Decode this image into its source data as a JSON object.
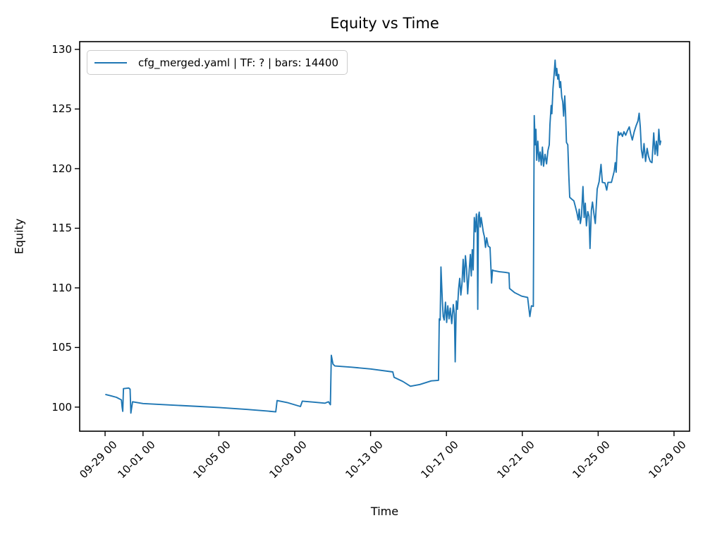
{
  "chart_data": {
    "type": "line",
    "title": "Equity vs Time",
    "xlabel": "Time",
    "ylabel": "Equity",
    "line_color": "#1f77b4",
    "legend_position": "upper left",
    "grid": false,
    "xlim_days": [
      -1.34,
      30.82
    ],
    "ylim": [
      97.98,
      130.65
    ],
    "x_ticks": [
      {
        "day": 0,
        "label": "09-29 00"
      },
      {
        "day": 2,
        "label": "10-01 00"
      },
      {
        "day": 6,
        "label": "10-05 00"
      },
      {
        "day": 10,
        "label": "10-09 00"
      },
      {
        "day": 14,
        "label": "10-13 00"
      },
      {
        "day": 18,
        "label": "10-17 00"
      },
      {
        "day": 22,
        "label": "10-21 00"
      },
      {
        "day": 26,
        "label": "10-25 00"
      },
      {
        "day": 30,
        "label": "10-29 00"
      }
    ],
    "y_ticks": [
      100,
      105,
      110,
      115,
      120,
      125,
      130
    ],
    "series": [
      {
        "name": "cfg_merged.yaml | TF: ? | bars: 14400",
        "points": [
          [
            0.04,
            101.05
          ],
          [
            0.3,
            100.95
          ],
          [
            0.6,
            100.82
          ],
          [
            0.86,
            100.6
          ],
          [
            0.9,
            100.0
          ],
          [
            0.93,
            99.65
          ],
          [
            0.97,
            101.55
          ],
          [
            1.25,
            101.6
          ],
          [
            1.32,
            101.5
          ],
          [
            1.36,
            99.5
          ],
          [
            1.45,
            100.45
          ],
          [
            2.0,
            100.3
          ],
          [
            3.4,
            100.18
          ],
          [
            5.0,
            100.05
          ],
          [
            6.0,
            99.97
          ],
          [
            7.5,
            99.8
          ],
          [
            8.5,
            99.68
          ],
          [
            9.0,
            99.6
          ],
          [
            9.07,
            100.55
          ],
          [
            9.6,
            100.38
          ],
          [
            10.3,
            100.05
          ],
          [
            10.4,
            100.5
          ],
          [
            11.0,
            100.42
          ],
          [
            11.6,
            100.33
          ],
          [
            11.78,
            100.45
          ],
          [
            11.88,
            100.2
          ],
          [
            11.93,
            104.35
          ],
          [
            12.02,
            103.6
          ],
          [
            12.12,
            103.45
          ],
          [
            13.0,
            103.35
          ],
          [
            14.0,
            103.2
          ],
          [
            15.17,
            102.95
          ],
          [
            15.24,
            102.5
          ],
          [
            15.7,
            102.15
          ],
          [
            16.1,
            101.75
          ],
          [
            16.6,
            101.9
          ],
          [
            17.2,
            102.2
          ],
          [
            17.58,
            102.25
          ],
          [
            17.62,
            107.4
          ],
          [
            17.67,
            107.3
          ],
          [
            17.71,
            111.75
          ],
          [
            17.78,
            109.0
          ],
          [
            17.83,
            107.6
          ],
          [
            17.88,
            107.3
          ],
          [
            17.95,
            108.8
          ],
          [
            18.01,
            107.1
          ],
          [
            18.07,
            108.5
          ],
          [
            18.14,
            107.4
          ],
          [
            18.2,
            108.3
          ],
          [
            18.28,
            107.0
          ],
          [
            18.36,
            108.6
          ],
          [
            18.42,
            107.8
          ],
          [
            18.46,
            103.8
          ],
          [
            18.52,
            108.9
          ],
          [
            18.58,
            108.2
          ],
          [
            18.64,
            109.9
          ],
          [
            18.7,
            110.8
          ],
          [
            18.76,
            109.4
          ],
          [
            18.82,
            110.3
          ],
          [
            18.88,
            112.4
          ],
          [
            18.94,
            110.5
          ],
          [
            19.0,
            112.7
          ],
          [
            19.06,
            111.6
          ],
          [
            19.12,
            109.5
          ],
          [
            19.2,
            111.5
          ],
          [
            19.26,
            112.8
          ],
          [
            19.31,
            111.0
          ],
          [
            19.36,
            113.2
          ],
          [
            19.41,
            111.5
          ],
          [
            19.47,
            115.9
          ],
          [
            19.53,
            114.7
          ],
          [
            19.58,
            116.2
          ],
          [
            19.62,
            114.9
          ],
          [
            19.65,
            108.2
          ],
          [
            19.69,
            116.0
          ],
          [
            19.73,
            116.35
          ],
          [
            19.78,
            115.1
          ],
          [
            19.83,
            115.9
          ],
          [
            19.88,
            115.4
          ],
          [
            19.94,
            114.7
          ],
          [
            20.0,
            114.3
          ],
          [
            20.06,
            113.4
          ],
          [
            20.12,
            114.2
          ],
          [
            20.2,
            113.5
          ],
          [
            20.3,
            113.4
          ],
          [
            20.38,
            110.4
          ],
          [
            20.43,
            111.5
          ],
          [
            20.48,
            111.45
          ],
          [
            20.8,
            111.35
          ],
          [
            21.1,
            111.3
          ],
          [
            21.3,
            111.25
          ],
          [
            21.33,
            109.95
          ],
          [
            21.6,
            109.6
          ],
          [
            21.97,
            109.3
          ],
          [
            22.28,
            109.2
          ],
          [
            22.4,
            107.6
          ],
          [
            22.48,
            108.5
          ],
          [
            22.58,
            108.45
          ],
          [
            22.63,
            124.45
          ],
          [
            22.68,
            122.0
          ],
          [
            22.72,
            123.3
          ],
          [
            22.76,
            120.7
          ],
          [
            22.82,
            122.3
          ],
          [
            22.88,
            120.6
          ],
          [
            22.94,
            121.4
          ],
          [
            23.0,
            120.3
          ],
          [
            23.06,
            121.8
          ],
          [
            23.12,
            120.2
          ],
          [
            23.2,
            121.2
          ],
          [
            23.28,
            120.4
          ],
          [
            23.35,
            121.5
          ],
          [
            23.42,
            122.0
          ],
          [
            23.46,
            123.7
          ],
          [
            23.52,
            125.3
          ],
          [
            23.56,
            124.6
          ],
          [
            23.62,
            126.7
          ],
          [
            23.68,
            128.0
          ],
          [
            23.73,
            129.1
          ],
          [
            23.78,
            127.8
          ],
          [
            23.82,
            128.4
          ],
          [
            23.87,
            127.5
          ],
          [
            23.92,
            127.9
          ],
          [
            23.97,
            126.8
          ],
          [
            24.02,
            127.3
          ],
          [
            24.08,
            126.0
          ],
          [
            24.13,
            125.6
          ],
          [
            24.18,
            124.4
          ],
          [
            24.24,
            126.1
          ],
          [
            24.28,
            124.7
          ],
          [
            24.33,
            122.2
          ],
          [
            24.4,
            122.0
          ],
          [
            24.45,
            119.5
          ],
          [
            24.5,
            117.6
          ],
          [
            24.6,
            117.45
          ],
          [
            24.72,
            117.3
          ],
          [
            24.8,
            116.8
          ],
          [
            24.88,
            116.3
          ],
          [
            24.95,
            115.7
          ],
          [
            25.0,
            116.6
          ],
          [
            25.06,
            115.4
          ],
          [
            25.12,
            116.0
          ],
          [
            25.2,
            118.5
          ],
          [
            25.26,
            115.9
          ],
          [
            25.32,
            117.1
          ],
          [
            25.38,
            115.2
          ],
          [
            25.45,
            116.4
          ],
          [
            25.52,
            116.0
          ],
          [
            25.57,
            113.3
          ],
          [
            25.64,
            116.5
          ],
          [
            25.7,
            117.2
          ],
          [
            25.78,
            116.2
          ],
          [
            25.85,
            115.4
          ],
          [
            25.95,
            118.3
          ],
          [
            26.05,
            118.9
          ],
          [
            26.15,
            120.35
          ],
          [
            26.22,
            118.85
          ],
          [
            26.36,
            118.8
          ],
          [
            26.45,
            118.2
          ],
          [
            26.52,
            118.85
          ],
          [
            26.7,
            118.85
          ],
          [
            26.85,
            119.8
          ],
          [
            26.9,
            120.5
          ],
          [
            26.95,
            119.7
          ],
          [
            27.0,
            121.8
          ],
          [
            27.06,
            123.1
          ],
          [
            27.12,
            122.8
          ],
          [
            27.2,
            123.0
          ],
          [
            27.28,
            122.7
          ],
          [
            27.36,
            123.1
          ],
          [
            27.45,
            122.8
          ],
          [
            27.55,
            123.2
          ],
          [
            27.64,
            123.5
          ],
          [
            27.72,
            122.9
          ],
          [
            27.8,
            122.4
          ],
          [
            27.9,
            123.1
          ],
          [
            28.0,
            123.6
          ],
          [
            28.1,
            124.0
          ],
          [
            28.16,
            124.65
          ],
          [
            28.22,
            123.5
          ],
          [
            28.28,
            121.6
          ],
          [
            28.35,
            120.9
          ],
          [
            28.42,
            122.1
          ],
          [
            28.5,
            120.6
          ],
          [
            28.58,
            121.7
          ],
          [
            28.66,
            121.0
          ],
          [
            28.75,
            120.6
          ],
          [
            28.84,
            120.5
          ],
          [
            28.93,
            123.0
          ],
          [
            29.0,
            121.2
          ],
          [
            29.07,
            122.3
          ],
          [
            29.13,
            121.1
          ],
          [
            29.2,
            123.3
          ],
          [
            29.26,
            122.0
          ],
          [
            29.3,
            122.3
          ]
        ]
      }
    ]
  }
}
